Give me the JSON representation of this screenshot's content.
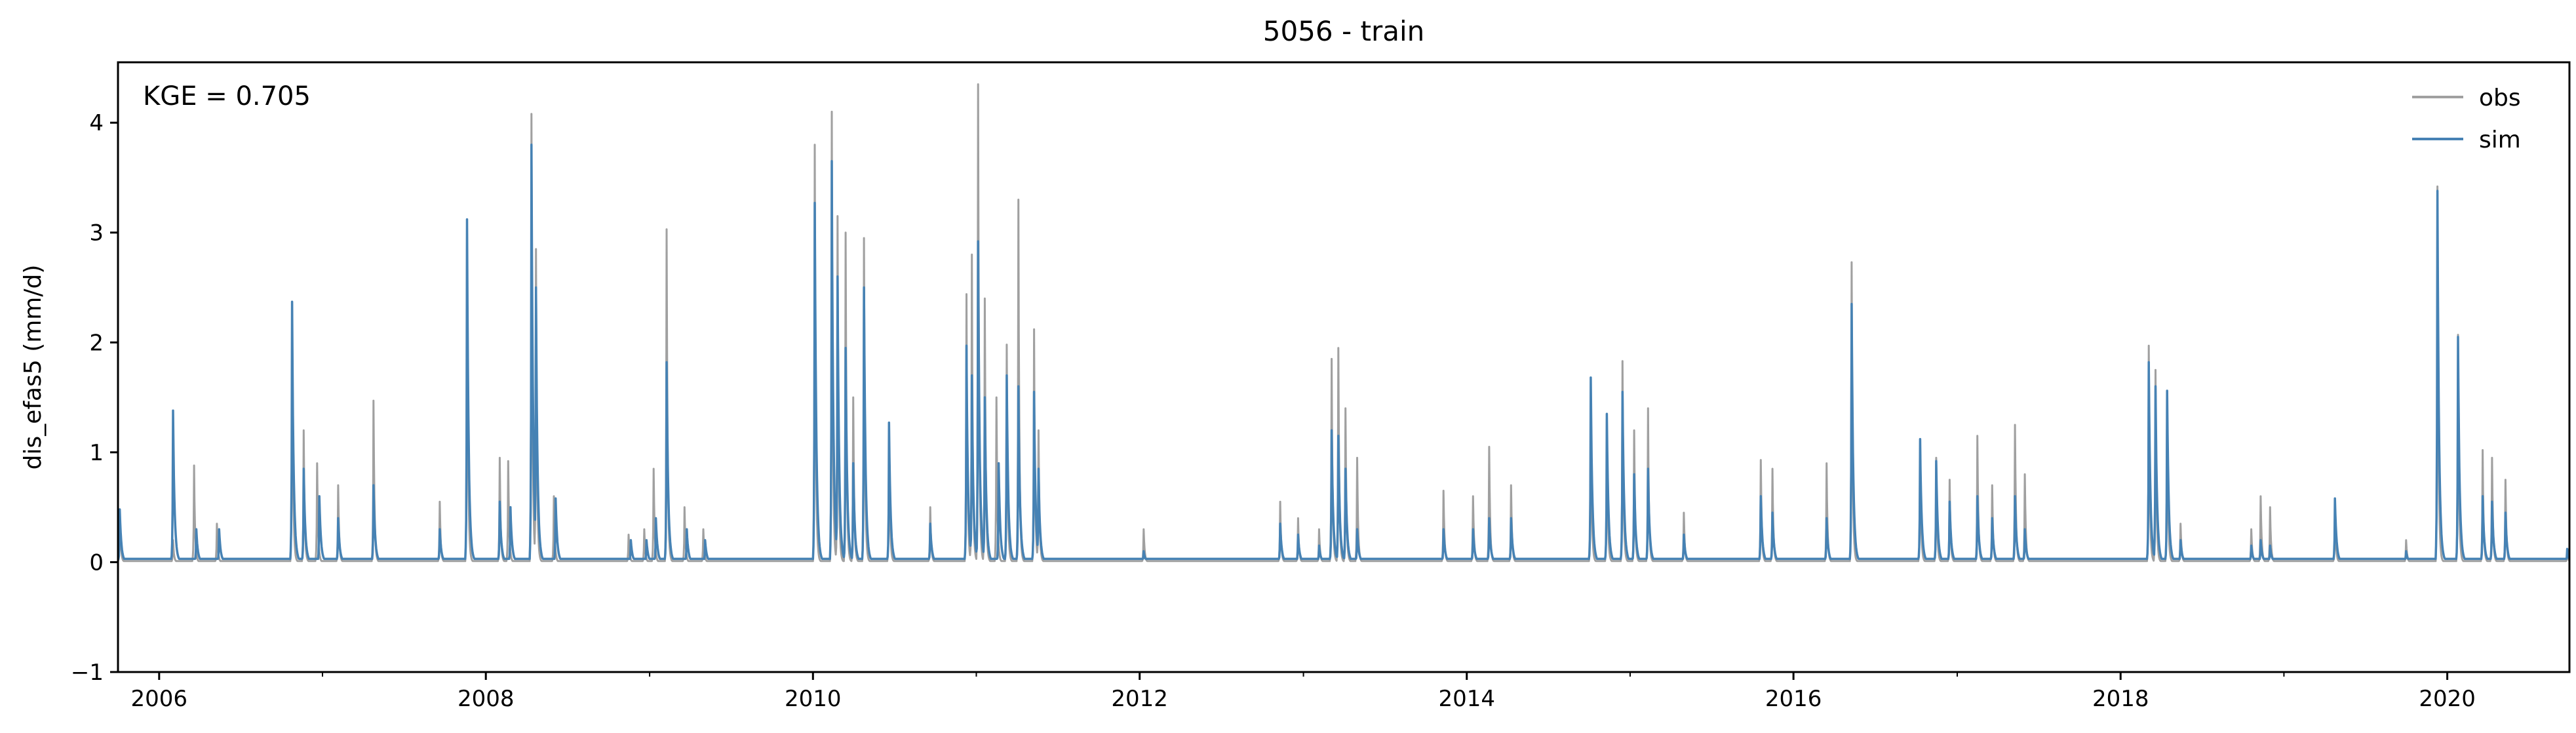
{
  "chart_data": {
    "type": "line",
    "title": "5056 - train",
    "ylabel": "dis_efas5 (mm/d)",
    "xlabel": "",
    "annotation": "KGE = 0.705",
    "xlim": [
      "2005-10-01",
      "2020-09-30"
    ],
    "ylim": [
      -1,
      4.55
    ],
    "y_ticks": [
      -1,
      0,
      1,
      2,
      3,
      4
    ],
    "y_tick_labels": [
      "−1",
      "0",
      "1",
      "2",
      "3",
      "4"
    ],
    "x_ticks": [
      "2006-01-01",
      "2008-01-01",
      "2010-01-01",
      "2012-01-01",
      "2014-01-01",
      "2016-01-01",
      "2018-01-01",
      "2020-01-01"
    ],
    "x_tick_labels": [
      "2006",
      "2008",
      "2010",
      "2012",
      "2014",
      "2016",
      "2018",
      "2020"
    ],
    "grid": false,
    "legend_position": "top-right",
    "colors": {
      "obs": "#a0a0a0",
      "sim": "#4682b4"
    },
    "series": [
      {
        "name": "obs",
        "events": [
          [
            "2005-10-05",
            0.48
          ],
          [
            "2006-02-01",
            0.2
          ],
          [
            "2006-03-20",
            0.88
          ],
          [
            "2006-05-10",
            0.35
          ],
          [
            "2006-10-25",
            2.35
          ],
          [
            "2006-11-20",
            1.2
          ],
          [
            "2006-12-20",
            0.9
          ],
          [
            "2007-02-05",
            0.7
          ],
          [
            "2007-04-25",
            1.47
          ],
          [
            "2007-09-20",
            0.55
          ],
          [
            "2007-11-20",
            3.05
          ],
          [
            "2008-02-01",
            0.95
          ],
          [
            "2008-02-20",
            0.92
          ],
          [
            "2008-04-12",
            4.08
          ],
          [
            "2008-04-22",
            2.85
          ],
          [
            "2008-06-01",
            0.6
          ],
          [
            "2008-11-15",
            0.25
          ],
          [
            "2008-12-20",
            0.3
          ],
          [
            "2009-01-10",
            0.85
          ],
          [
            "2009-02-08",
            3.03
          ],
          [
            "2009-03-20",
            0.5
          ],
          [
            "2009-05-01",
            0.3
          ],
          [
            "2010-01-05",
            3.8
          ],
          [
            "2010-02-12",
            4.1
          ],
          [
            "2010-02-25",
            3.15
          ],
          [
            "2010-03-15",
            3.0
          ],
          [
            "2010-04-01",
            1.5
          ],
          [
            "2010-04-25",
            2.95
          ],
          [
            "2010-06-20",
            1.2
          ],
          [
            "2010-09-20",
            0.5
          ],
          [
            "2010-12-10",
            2.44
          ],
          [
            "2010-12-22",
            2.8
          ],
          [
            "2011-01-05",
            4.35
          ],
          [
            "2011-01-20",
            2.4
          ],
          [
            "2011-02-15",
            1.5
          ],
          [
            "2011-03-10",
            1.98
          ],
          [
            "2011-04-05",
            3.3
          ],
          [
            "2011-05-10",
            2.12
          ],
          [
            "2011-05-20",
            1.2
          ],
          [
            "2012-01-10",
            0.3
          ],
          [
            "2012-11-10",
            0.55
          ],
          [
            "2012-12-20",
            0.4
          ],
          [
            "2013-02-05",
            0.3
          ],
          [
            "2013-03-05",
            1.85
          ],
          [
            "2013-03-20",
            1.95
          ],
          [
            "2013-04-05",
            1.4
          ],
          [
            "2013-05-01",
            0.95
          ],
          [
            "2013-11-10",
            0.65
          ],
          [
            "2014-01-15",
            0.6
          ],
          [
            "2014-02-20",
            1.05
          ],
          [
            "2014-04-10",
            0.7
          ],
          [
            "2014-10-05",
            1.5
          ],
          [
            "2014-11-10",
            1.3
          ],
          [
            "2014-12-15",
            1.83
          ],
          [
            "2015-01-10",
            1.2
          ],
          [
            "2015-02-10",
            1.4
          ],
          [
            "2015-05-01",
            0.45
          ],
          [
            "2015-10-20",
            0.93
          ],
          [
            "2015-11-15",
            0.85
          ],
          [
            "2016-03-15",
            0.9
          ],
          [
            "2016-05-10",
            2.73
          ],
          [
            "2016-10-10",
            1.1
          ],
          [
            "2016-11-15",
            0.95
          ],
          [
            "2016-12-15",
            0.75
          ],
          [
            "2017-02-15",
            1.15
          ],
          [
            "2017-03-20",
            0.7
          ],
          [
            "2017-05-10",
            1.25
          ],
          [
            "2017-06-01",
            0.8
          ],
          [
            "2018-03-05",
            1.97
          ],
          [
            "2018-03-20",
            1.75
          ],
          [
            "2018-04-15",
            1.55
          ],
          [
            "2018-05-15",
            0.35
          ],
          [
            "2018-10-20",
            0.3
          ],
          [
            "2018-11-10",
            0.6
          ],
          [
            "2018-12-01",
            0.5
          ],
          [
            "2019-04-25",
            0.5
          ],
          [
            "2019-10-01",
            0.2
          ],
          [
            "2019-12-10",
            3.42
          ],
          [
            "2020-01-25",
            2.07
          ],
          [
            "2020-03-20",
            1.02
          ],
          [
            "2020-04-10",
            0.95
          ],
          [
            "2020-05-10",
            0.75
          ],
          [
            "2020-09-25",
            0.1
          ]
        ]
      },
      {
        "name": "sim",
        "events": [
          [
            "2005-10-05",
            0.48
          ],
          [
            "2006-02-01",
            1.38
          ],
          [
            "2006-03-25",
            0.3
          ],
          [
            "2006-05-15",
            0.3
          ],
          [
            "2006-10-25",
            2.37
          ],
          [
            "2006-11-20",
            0.85
          ],
          [
            "2006-12-25",
            0.6
          ],
          [
            "2007-02-05",
            0.4
          ],
          [
            "2007-04-25",
            0.7
          ],
          [
            "2007-09-20",
            0.3
          ],
          [
            "2007-11-20",
            3.12
          ],
          [
            "2008-02-01",
            0.55
          ],
          [
            "2008-02-25",
            0.5
          ],
          [
            "2008-04-12",
            3.8
          ],
          [
            "2008-04-22",
            2.5
          ],
          [
            "2008-06-05",
            0.58
          ],
          [
            "2008-11-20",
            0.2
          ],
          [
            "2008-12-25",
            0.2
          ],
          [
            "2009-01-15",
            0.4
          ],
          [
            "2009-02-08",
            1.82
          ],
          [
            "2009-03-25",
            0.3
          ],
          [
            "2009-05-05",
            0.2
          ],
          [
            "2010-01-05",
            3.27
          ],
          [
            "2010-02-12",
            3.65
          ],
          [
            "2010-02-25",
            2.6
          ],
          [
            "2010-03-15",
            1.95
          ],
          [
            "2010-04-01",
            0.9
          ],
          [
            "2010-04-25",
            2.5
          ],
          [
            "2010-06-20",
            1.27
          ],
          [
            "2010-09-20",
            0.35
          ],
          [
            "2010-12-10",
            1.97
          ],
          [
            "2010-12-22",
            1.7
          ],
          [
            "2011-01-05",
            2.92
          ],
          [
            "2011-01-20",
            1.5
          ],
          [
            "2011-02-20",
            0.9
          ],
          [
            "2011-03-10",
            1.7
          ],
          [
            "2011-04-05",
            1.6
          ],
          [
            "2011-05-10",
            1.55
          ],
          [
            "2011-05-20",
            0.85
          ],
          [
            "2012-01-10",
            0.1
          ],
          [
            "2012-11-10",
            0.35
          ],
          [
            "2012-12-20",
            0.25
          ],
          [
            "2013-02-05",
            0.15
          ],
          [
            "2013-03-05",
            1.2
          ],
          [
            "2013-03-20",
            1.15
          ],
          [
            "2013-04-05",
            0.85
          ],
          [
            "2013-05-01",
            0.3
          ],
          [
            "2013-11-10",
            0.3
          ],
          [
            "2014-01-15",
            0.3
          ],
          [
            "2014-02-20",
            0.4
          ],
          [
            "2014-04-10",
            0.4
          ],
          [
            "2014-10-05",
            1.68
          ],
          [
            "2014-11-10",
            1.35
          ],
          [
            "2014-12-15",
            1.55
          ],
          [
            "2015-01-10",
            0.8
          ],
          [
            "2015-02-10",
            0.85
          ],
          [
            "2015-05-01",
            0.25
          ],
          [
            "2015-10-20",
            0.6
          ],
          [
            "2015-11-15",
            0.45
          ],
          [
            "2016-03-15",
            0.4
          ],
          [
            "2016-05-10",
            2.35
          ],
          [
            "2016-10-10",
            1.12
          ],
          [
            "2016-11-15",
            0.92
          ],
          [
            "2016-12-15",
            0.55
          ],
          [
            "2017-02-15",
            0.6
          ],
          [
            "2017-03-20",
            0.4
          ],
          [
            "2017-05-10",
            0.6
          ],
          [
            "2017-06-01",
            0.3
          ],
          [
            "2018-03-05",
            1.82
          ],
          [
            "2018-03-20",
            1.6
          ],
          [
            "2018-04-15",
            1.56
          ],
          [
            "2018-05-15",
            0.2
          ],
          [
            "2018-10-20",
            0.15
          ],
          [
            "2018-11-10",
            0.2
          ],
          [
            "2018-12-01",
            0.15
          ],
          [
            "2019-04-25",
            0.58
          ],
          [
            "2019-10-01",
            0.1
          ],
          [
            "2019-12-10",
            3.38
          ],
          [
            "2020-01-25",
            2.05
          ],
          [
            "2020-03-20",
            0.6
          ],
          [
            "2020-04-10",
            0.55
          ],
          [
            "2020-05-10",
            0.45
          ],
          [
            "2020-09-25",
            0.12
          ]
        ]
      }
    ]
  }
}
